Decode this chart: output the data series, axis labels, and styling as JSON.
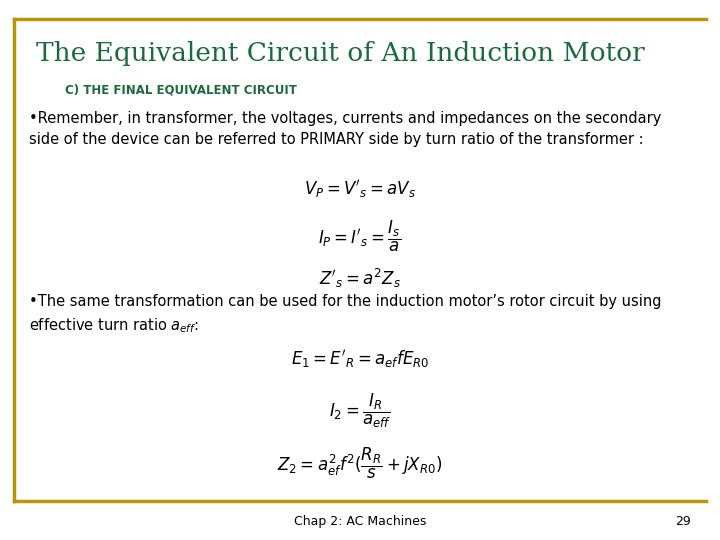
{
  "title": "The Equivalent Circuit of An Induction Motor",
  "subtitle": "C) THE FINAL EQUIVALENT CIRCUIT",
  "title_color": "#1a6b3c",
  "subtitle_color": "#1a6b3c",
  "border_color": "#b8960c",
  "text_color": "#000000",
  "bg_color": "#ffffff",
  "body_text1": "•Remember, in transformer, the voltages, currents and impedances on the secondary\nside of the device can be referred to PRIMARY side by turn ratio of the transformer :",
  "eq1": "$V_P = V'_s = aV_s$",
  "eq2": "$I_P = I'_s = \\dfrac{I_s}{a}$",
  "eq3": "$Z'_s = a^2 Z_s$",
  "body_text2": "•The same transformation can be used for the induction motor’s rotor circuit by using\neffective turn ratio $a_{eff}$:",
  "eq4": "$E_1 = E'_R = a_{ef} f E_{R0}$",
  "eq5": "$I_2 = \\dfrac{I_R}{a_{eff}}$",
  "eq6": "$Z_2 = a^2_{ef} f^2(\\dfrac{R_R}{s} + jX_{R0})$",
  "footer_text": "Chap 2: AC Machines",
  "page_number": "29",
  "title_fontsize": 19,
  "subtitle_fontsize": 8.5,
  "body_fontsize": 10.5,
  "eq_fontsize": 12,
  "footer_fontsize": 9
}
